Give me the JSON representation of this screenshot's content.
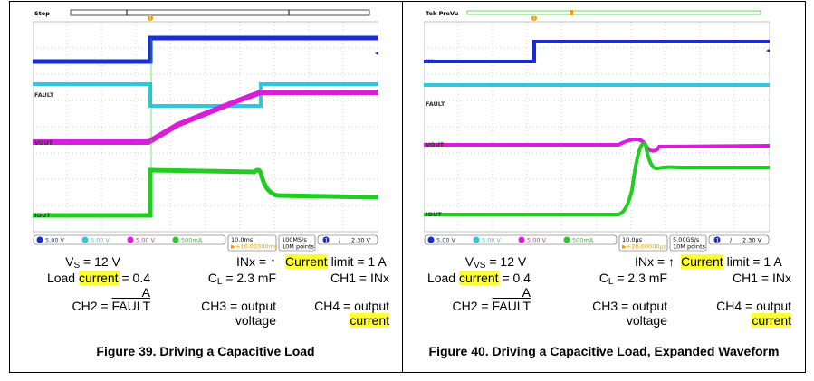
{
  "figure39": {
    "scope": {
      "status": "Stop",
      "trigger_marker": "T",
      "channel_labels": {
        "ch1": "IN",
        "ch2": "",
        "ch3": "FAULT",
        "ch4": "VOUT",
        "ch5": "IOUT"
      },
      "status_bar": {
        "ch1": "5.00 V",
        "ch2": "5.00 V",
        "ch3": "5.00 V",
        "ch4": "500mA",
        "timebase": "10.0ms",
        "delay": "▶+10.02000ms",
        "sample_rate": "100MS/s",
        "points": "10M points",
        "trig_ch": "1",
        "trig_symbol": "/",
        "trig_level": "2.30 V"
      }
    },
    "params": {
      "vs_prefix": "V",
      "vs_sub": "S",
      "vs_value": " = 12 V",
      "inx": "INx = ↑",
      "limit_hl": "Current",
      "limit_rest": " limit = 1 A",
      "load_prefix": "Load ",
      "load_hl": "current",
      "load_rest": " = 0.4",
      "load_unit": "A",
      "cl_prefix": "C",
      "cl_sub": "L",
      "cl_value": " = 2.3 mF",
      "ch1": "CH1 = INx",
      "ch2_prefix": "CH2 = ",
      "ch2_fault": "FAULT",
      "ch3_line1": "CH3 = output",
      "ch3_line2": "voltage",
      "ch4_line1": "CH4 = output",
      "ch4_line2_hl": "current"
    },
    "caption": "Figure 39. Driving a Capacitive Load"
  },
  "figure40": {
    "scope": {
      "status": "Tek PreVu",
      "trigger_marker": "T",
      "channel_labels": {
        "ch1": "IN",
        "ch3": "FAULT",
        "ch4": "VOUT",
        "ch5": "IOUT"
      },
      "status_bar": {
        "ch1": "5.00 V",
        "ch2": "5.00 V",
        "ch3": "5.00 V",
        "ch4": "500mA",
        "timebase": "10.0µs",
        "delay": "▶+20.00000µs",
        "sample_rate": "5.00GS/s",
        "points": "10M points",
        "trig_ch": "1",
        "trig_symbol": "/",
        "trig_level": "2.30 V"
      }
    },
    "params": {
      "vs_prefix": "V",
      "vs_sub": "VS",
      "vs_value": " = 12 V",
      "inx": "INx = ↑",
      "limit_hl": "Current",
      "limit_rest": " limit = 1 A",
      "load_prefix": "Load ",
      "load_hl": "current",
      "load_rest": " = 0.4",
      "load_unit": "A",
      "cl_prefix": "C",
      "cl_sub": "L",
      "cl_value": " = 2.3 mF",
      "ch1": "CH1 = INx",
      "ch2_prefix": "CH2 = ",
      "ch2_fault": "FAULT",
      "ch3_line1": "CH3 = output",
      "ch3_line2": "voltage",
      "ch4_line1": "CH4 = output",
      "ch4_line2_hl": "current"
    },
    "caption": "Figure 40. Driving a Capacitive Load, Expanded Waveform"
  },
  "colors": {
    "ch1": "#1a2bd6",
    "ch2": "#2ec8d8",
    "ch3": "#d81ed8",
    "ch4": "#22cc22",
    "grid": "#9a9a9a",
    "highlight": "#ffff33"
  }
}
